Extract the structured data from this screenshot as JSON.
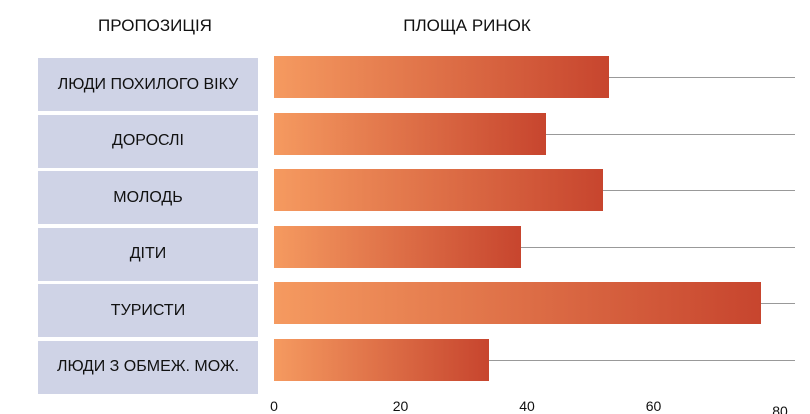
{
  "chart_data": {
    "type": "bar",
    "orientation": "horizontal",
    "title": "ПЛОЩА РИНОК",
    "category_header": "ПРОПОЗИЦІЯ",
    "categories": [
      "ЛЮДИ ПОХИЛОГО ВІКУ",
      "ДОРОСЛІ",
      "МОЛОДЬ",
      "ДІТИ",
      "ТУРИСТИ",
      "ЛЮДИ З ОБМЕЖ. МОЖ."
    ],
    "values": [
      53,
      43,
      52,
      39,
      77,
      34
    ],
    "colors": [
      "#f59a60",
      "#c7452e"
    ],
    "xlim": [
      0,
      80
    ],
    "xticks": [
      0,
      20,
      40,
      60,
      80
    ]
  }
}
